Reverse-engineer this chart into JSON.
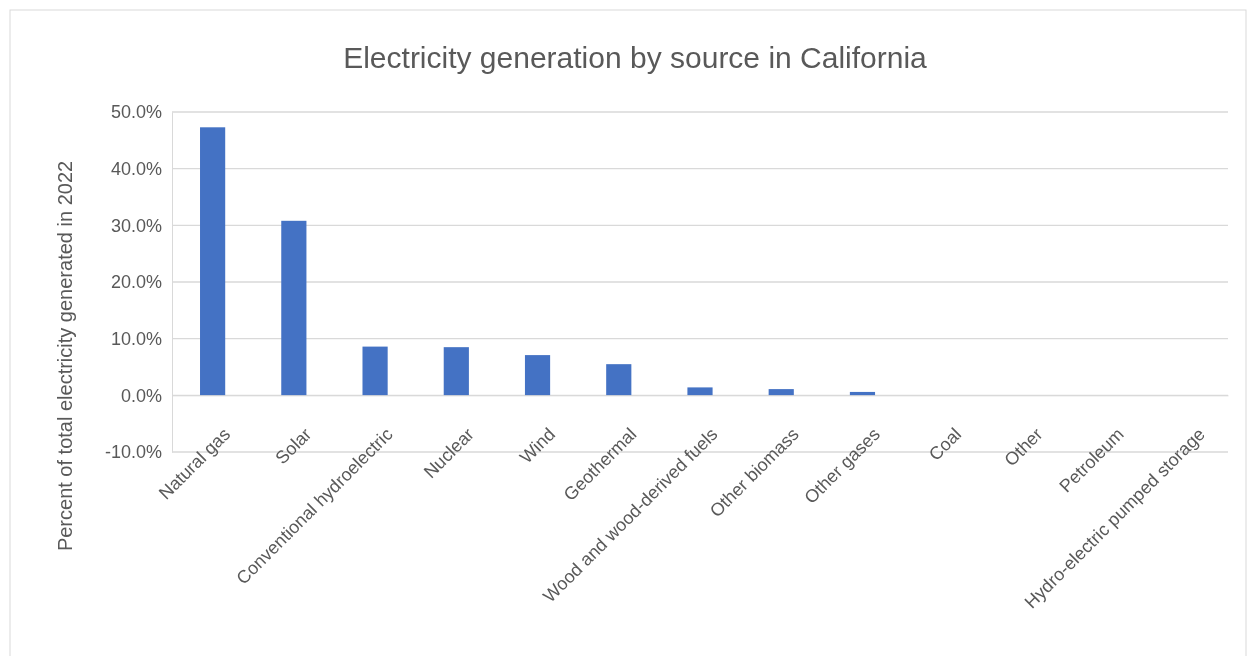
{
  "chart_data": {
    "type": "bar",
    "title": "Electricity generation by source in California",
    "ylabel": "Percent of total electricity generated in 2022",
    "categories": [
      "Natural gas",
      "Solar",
      "Conventional hydroelectric",
      "Nuclear",
      "Wind",
      "Geothermal",
      "Wood and wood-derived fuels",
      "Other biomass",
      "Other gases",
      "Coal",
      "Other",
      "Petroleum",
      "Hydro-electric pumped storage"
    ],
    "values": [
      47.3,
      30.8,
      8.6,
      8.5,
      7.1,
      5.5,
      1.4,
      1.1,
      0.6,
      0,
      0,
      0,
      0
    ],
    "color": "#4472c4",
    "ylim": [
      -10,
      50
    ],
    "yticks": [
      {
        "value": -10,
        "label": "-10.0%"
      },
      {
        "value": 0,
        "label": "0.0%"
      },
      {
        "value": 10,
        "label": "10.0%"
      },
      {
        "value": 20,
        "label": "20.0%"
      },
      {
        "value": 30,
        "label": "30.0%"
      },
      {
        "value": 40,
        "label": "40.0%"
      },
      {
        "value": 50,
        "label": "50.0%"
      }
    ],
    "grid": "y"
  }
}
